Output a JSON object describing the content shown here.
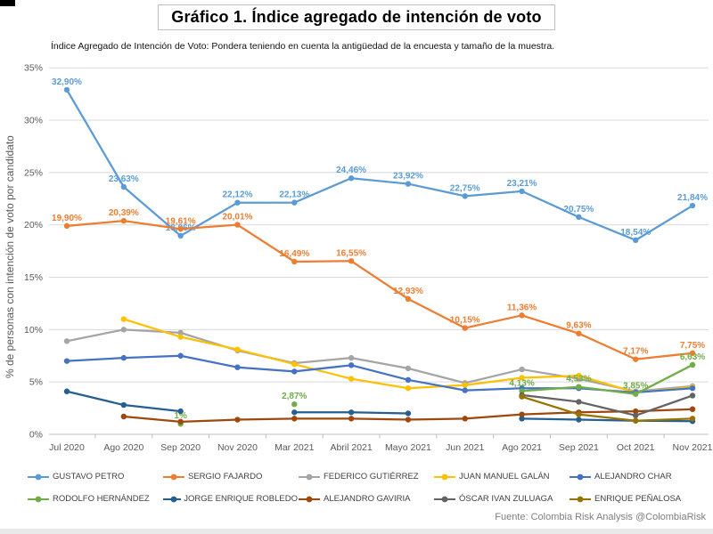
{
  "header": {
    "title": "Gráfico 1. Índice agregado de intención de voto",
    "subtitle": "Índice Agregado de Intención de Voto: Pondera teniendo en cuenta la antigüedad de la encuesta y tamaño de la muestra."
  },
  "source": "Fuente: Colombia Risk Analysis @ColombiaRisk",
  "chart_data": {
    "type": "line",
    "title": "Gráfico 1. Índice agregado de intención de voto",
    "xlabel": "",
    "ylabel": "% de personas con intención de voto por candidato",
    "ylim": [
      0,
      35
    ],
    "ytick_step": 5,
    "ytick_format": "percent",
    "grid": true,
    "legend_position": "bottom",
    "categories": [
      "Jul 2020",
      "Ago 2020",
      "Sep 2020",
      "Nov 2020",
      "Mar 2021",
      "Abril 2021",
      "Mayo 2021",
      "Jun 2021",
      "Ago 2021",
      "Sep 2021",
      "Oct 2021",
      "Nov 2021"
    ],
    "series": [
      {
        "name": "GUSTAVO PETRO",
        "color": "#5B9BD5",
        "values": [
          32.9,
          23.63,
          18.96,
          22.12,
          22.13,
          24.46,
          23.92,
          22.75,
          23.21,
          20.75,
          18.54,
          21.84
        ],
        "labels": [
          "32,90%",
          "23,63%",
          "18,96%",
          "22,12%",
          "22,13%",
          "24,46%",
          "23,92%",
          "22,75%",
          "23,21%",
          "20,75%",
          "18,54%",
          "21,84%"
        ]
      },
      {
        "name": "SERGIO FAJARDO",
        "color": "#ED7D31",
        "values": [
          19.9,
          20.39,
          19.61,
          20.01,
          16.49,
          16.55,
          12.93,
          10.15,
          11.36,
          9.63,
          7.17,
          7.75
        ],
        "labels": [
          "19,90%",
          "20,39%",
          "19,61%",
          "20,01%",
          "16,49%",
          "16,55%",
          "12,93%",
          "10,15%",
          "11,36%",
          "9,63%",
          "7,17%",
          "7,75%"
        ]
      },
      {
        "name": "FEDERICO GUTIÉRREZ",
        "color": "#A5A5A5",
        "values": [
          8.9,
          10.0,
          9.7,
          8.0,
          6.8,
          7.3,
          6.3,
          4.9,
          6.2,
          5.3,
          4.1,
          4.6
        ],
        "labels": []
      },
      {
        "name": "JUAN MANUEL GALÁN",
        "color": "#FFC000",
        "values": [
          null,
          11.0,
          9.3,
          8.1,
          6.7,
          5.3,
          4.4,
          4.7,
          5.4,
          5.6,
          4.0,
          4.5
        ],
        "labels": []
      },
      {
        "name": "ALEJANDRO CHAR",
        "color": "#4472C4",
        "values": [
          7.0,
          7.3,
          7.5,
          6.4,
          6.0,
          6.6,
          5.2,
          4.2,
          4.4,
          4.4,
          4.0,
          4.4
        ],
        "labels": []
      },
      {
        "name": "RODOLFO HERNÁNDEZ",
        "color": "#70AD47",
        "values": [
          null,
          null,
          1.0,
          null,
          2.87,
          null,
          null,
          null,
          4.13,
          4.53,
          3.85,
          6.63
        ],
        "labels": [
          "",
          "",
          "1%",
          "",
          "2,87%",
          "",
          "",
          "",
          "4,13%",
          "4,53%",
          "3,85%",
          "6,63%"
        ]
      },
      {
        "name": "JORGE ENRIQUE ROBLEDO",
        "color": "#255E91",
        "values": [
          4.1,
          2.8,
          2.2,
          null,
          2.1,
          2.1,
          2.0,
          null,
          1.5,
          1.4,
          1.3,
          1.25
        ],
        "labels": []
      },
      {
        "name": "ALEJANDRO GAVIRIA",
        "color": "#9E480E",
        "values": [
          null,
          1.7,
          1.2,
          1.4,
          1.5,
          1.5,
          1.4,
          1.5,
          1.9,
          2.1,
          2.2,
          2.4
        ],
        "labels": []
      },
      {
        "name": "ÓSCAR IVAN ZULUAGA",
        "color": "#636363",
        "values": [
          null,
          null,
          null,
          null,
          null,
          null,
          null,
          null,
          3.75,
          3.1,
          1.8,
          3.7
        ],
        "labels": []
      },
      {
        "name": "ENRIQUE PEÑALOSA",
        "color": "#997300",
        "values": [
          null,
          null,
          null,
          null,
          null,
          null,
          null,
          null,
          3.6,
          1.9,
          1.3,
          1.5
        ],
        "labels": []
      }
    ]
  }
}
